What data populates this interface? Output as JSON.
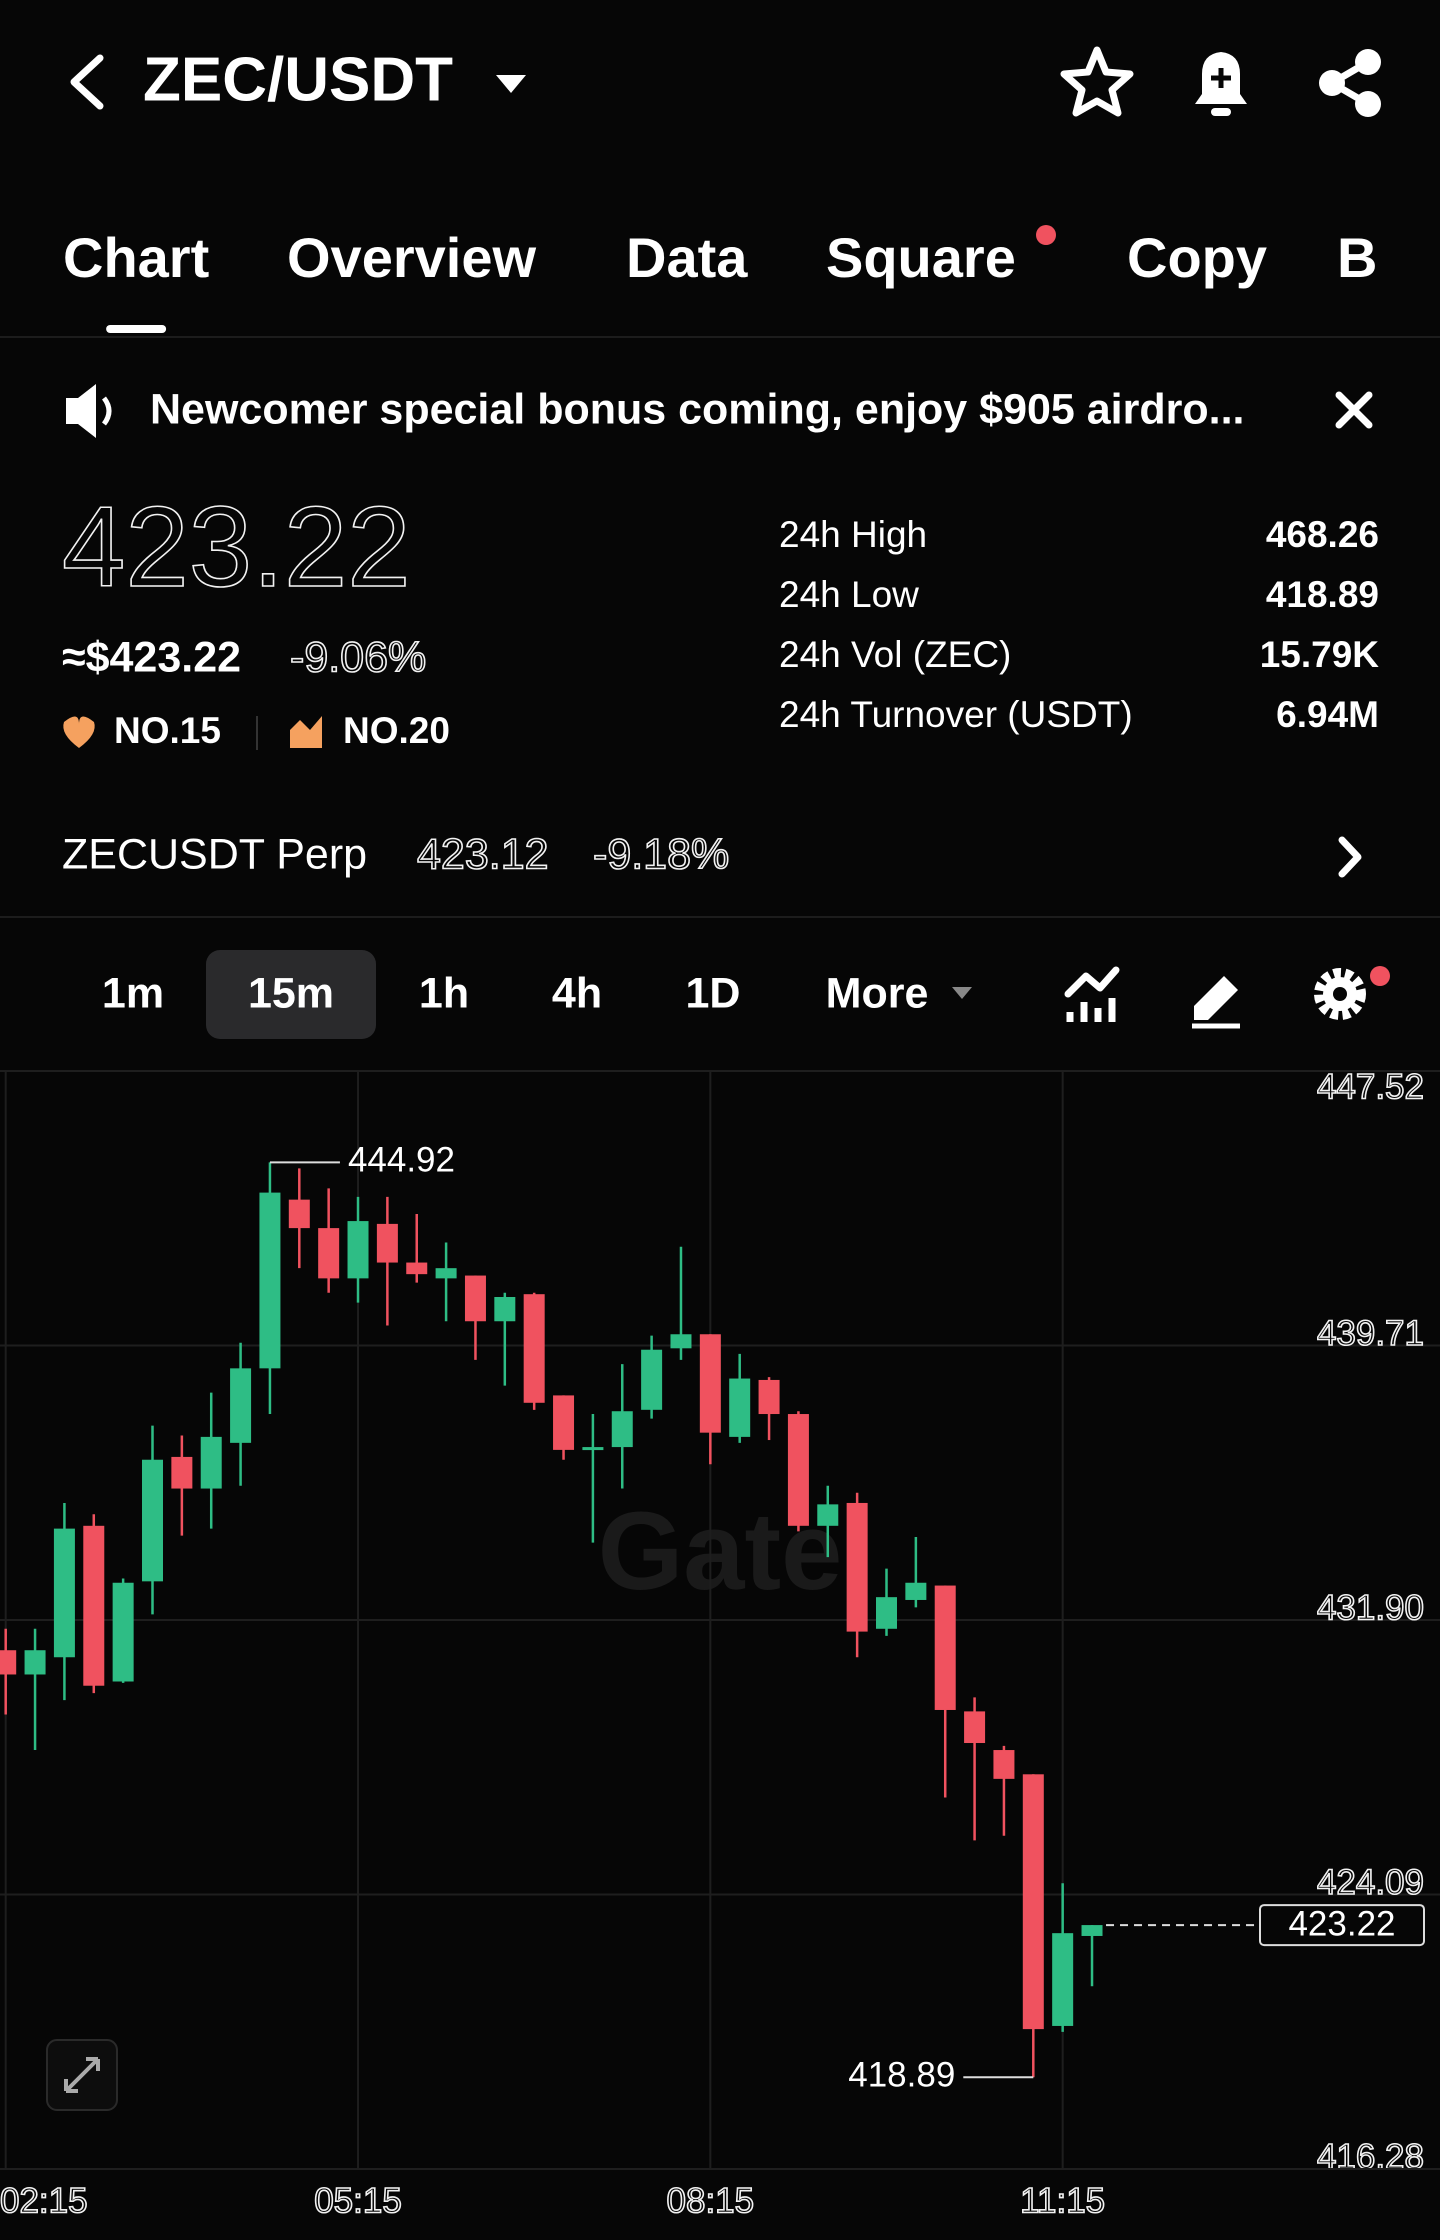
{
  "header": {
    "title": "ZEC/USDT"
  },
  "tabs": [
    "Chart",
    "Overview",
    "Data",
    "Square",
    "Copy",
    "B"
  ],
  "active_tab": 0,
  "banner": {
    "text": "Newcomer special bonus coming, enjoy $905 airdro..."
  },
  "price": {
    "last": "423.22",
    "usd": "≈$423.22",
    "change": "-9.06%",
    "ranks": [
      "NO.15",
      "NO.20"
    ]
  },
  "stats": [
    {
      "label": "24h High",
      "value": "468.26"
    },
    {
      "label": "24h Low",
      "value": "418.89"
    },
    {
      "label": "24h Vol (ZEC)",
      "value": "15.79K"
    },
    {
      "label": "24h Turnover (USDT)",
      "value": "6.94M"
    }
  ],
  "perp": {
    "name": "ZECUSDT Perp",
    "price": "423.12",
    "change": "-9.18%"
  },
  "intervals": [
    "1m",
    "15m",
    "1h",
    "4h",
    "1D",
    "More"
  ],
  "active_interval": 1,
  "chart_data": {
    "type": "candlestick",
    "watermark": "Gate",
    "up_color": "#2ebd85",
    "down_color": "#f0525f",
    "categories": [
      "02:15",
      null,
      null,
      null,
      null,
      null,
      null,
      null,
      null,
      null,
      null,
      null,
      "05:15",
      null,
      null,
      null,
      null,
      null,
      null,
      null,
      null,
      null,
      null,
      null,
      "08:15",
      null,
      null,
      null,
      null,
      null,
      null,
      null,
      null,
      null,
      null,
      null,
      "11:15",
      null
    ],
    "open": [
      431.04,
      430.35,
      430.84,
      434.58,
      430.15,
      433.0,
      436.54,
      435.64,
      436.94,
      439.06,
      443.86,
      443.05,
      441.62,
      443.17,
      442.07,
      441.62,
      441.7,
      440.4,
      441.17,
      438.29,
      436.74,
      436.82,
      437.88,
      439.63,
      440.03,
      437.11,
      438.73,
      437.76,
      434.58,
      435.23,
      431.65,
      432.47,
      432.88,
      429.3,
      428.2,
      427.51,
      420.35,
      422.91
    ],
    "high": [
      431.65,
      431.65,
      435.23,
      434.91,
      433.08,
      437.43,
      437.15,
      438.37,
      439.79,
      444.92,
      444.75,
      444.18,
      443.94,
      443.94,
      443.45,
      442.64,
      441.7,
      441.21,
      441.21,
      438.29,
      437.76,
      439.18,
      439.99,
      442.52,
      440.03,
      439.47,
      438.81,
      437.84,
      435.72,
      435.52,
      433.36,
      434.26,
      432.88,
      429.7,
      428.32,
      427.51,
      424.41,
      423.22
    ],
    "low": [
      429.21,
      428.2,
      429.62,
      429.82,
      430.11,
      432.06,
      434.3,
      434.5,
      435.72,
      437.76,
      441.91,
      441.21,
      440.93,
      440.28,
      441.5,
      440.4,
      439.3,
      438.57,
      437.88,
      436.46,
      434.1,
      435.64,
      437.63,
      439.3,
      436.33,
      436.94,
      437.02,
      434.42,
      433.69,
      430.84,
      431.45,
      432.26,
      426.85,
      425.63,
      425.76,
      418.89,
      420.18,
      421.48
    ],
    "close": [
      430.35,
      431.04,
      434.5,
      430.03,
      432.96,
      436.46,
      435.64,
      437.11,
      439.06,
      444.06,
      443.05,
      441.62,
      443.25,
      442.07,
      441.74,
      441.91,
      440.4,
      441.09,
      438.08,
      436.74,
      436.82,
      437.84,
      439.59,
      440.03,
      437.23,
      438.77,
      437.76,
      434.58,
      435.19,
      431.57,
      432.55,
      432.96,
      429.34,
      428.4,
      427.38,
      420.26,
      422.99,
      423.22
    ],
    "ylim": [
      416.28,
      447.52
    ],
    "yticks": [
      416.28,
      424.09,
      {
        "value": 431.9,
        "label": "431.90"
      },
      439.71,
      447.52
    ],
    "grid": true
  }
}
